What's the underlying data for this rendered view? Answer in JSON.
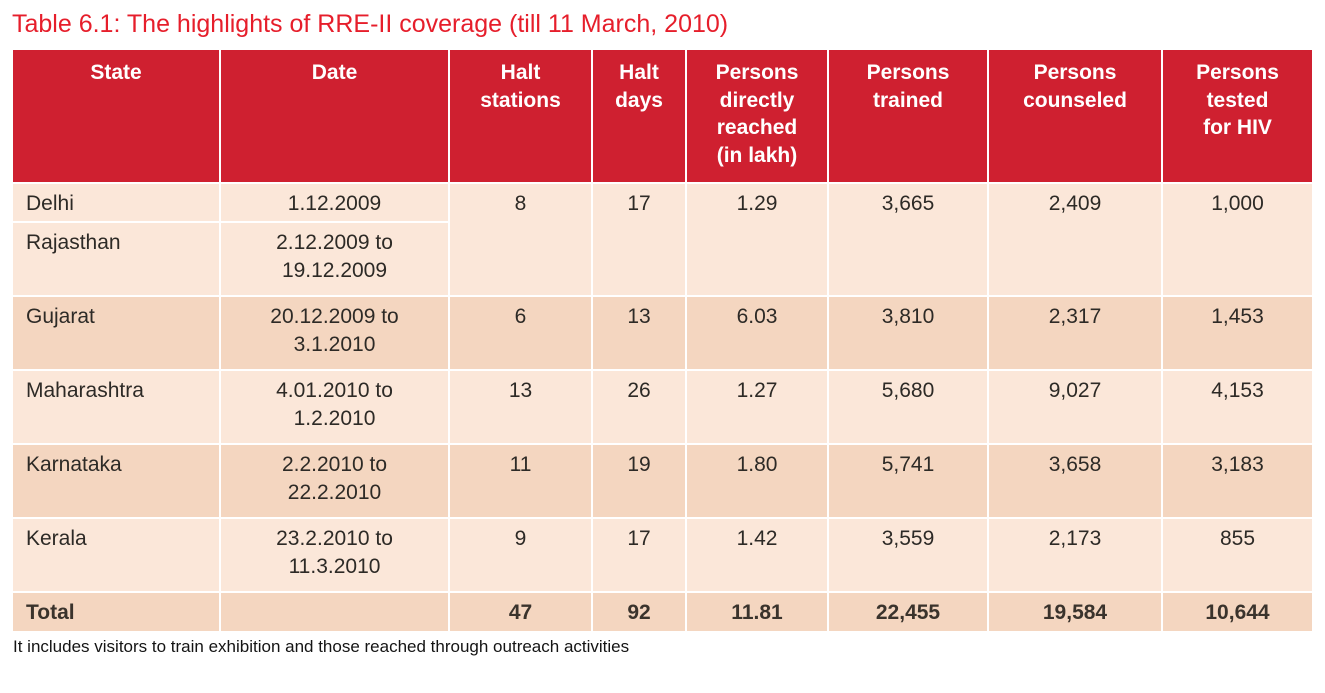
{
  "title": "Table 6.1: The highlights of RRE-II coverage (till 11 March, 2010)",
  "footnote": "It includes visitors to train exhibition and those reached through outreach activities",
  "colors": {
    "header_bg": "#cf2030",
    "header_text": "#ffffff",
    "row_light": "#fbe7d9",
    "row_dark": "#f4d6c0",
    "title_color": "#e61e2b",
    "body_text": "#2d2a26"
  },
  "chart_data": {
    "type": "table",
    "title": "Table 6.1: The highlights of RRE-II coverage (till 11 March, 2010)",
    "columns": [
      "State",
      "Date",
      "Halt stations",
      "Halt days",
      "Persons directly reached (in lakh)",
      "Persons trained",
      "Persons counseled",
      "Persons tested for HIV"
    ],
    "rows": [
      [
        "Delhi",
        "1.12.2009",
        8,
        17,
        1.29,
        3665,
        2409,
        1000
      ],
      [
        "Rajasthan",
        "2.12.2009 to 19.12.2009",
        null,
        null,
        null,
        null,
        null,
        null
      ],
      [
        "Gujarat",
        "20.12.2009 to 3.1.2010",
        6,
        13,
        6.03,
        3810,
        2317,
        1453
      ],
      [
        "Maharashtra",
        "4.01.2010 to 1.2.2010",
        13,
        26,
        1.27,
        5680,
        9027,
        4153
      ],
      [
        "Karnataka",
        "2.2.2010 to 22.2.2010",
        11,
        19,
        1.8,
        5741,
        3658,
        3183
      ],
      [
        "Kerala",
        "23.2.2010 to 11.3.2010",
        9,
        17,
        1.42,
        3559,
        2173,
        855
      ],
      [
        "Total",
        "",
        47,
        92,
        11.81,
        22455,
        19584,
        10644
      ]
    ],
    "note": "Delhi and Rajasthan share one merged data band"
  },
  "table": {
    "headers": {
      "state": "State",
      "date": "Date",
      "halt_stations": "Halt\nstations",
      "halt_days": "Halt\ndays",
      "reached": "Persons\ndirectly\nreached\n(in lakh)",
      "trained": "Persons\ntrained",
      "counseled": "Persons\ncounseled",
      "tested": "Persons\ntested\nfor HIV"
    },
    "rows": [
      {
        "state": "Delhi",
        "date": "1.12.2009",
        "halt_stations": "8",
        "halt_days": "17",
        "reached": "1.29",
        "trained": "3,665",
        "counseled": "2,409",
        "tested": "1,000"
      },
      {
        "state": "Rajasthan",
        "date": "2.12.2009 to\n19.12.2009"
      },
      {
        "state": "Gujarat",
        "date": "20.12.2009 to\n3.1.2010",
        "halt_stations": "6",
        "halt_days": "13",
        "reached": "6.03",
        "trained": "3,810",
        "counseled": "2,317",
        "tested": "1,453"
      },
      {
        "state": "Maharashtra",
        "date": "4.01.2010 to\n1.2.2010",
        "halt_stations": "13",
        "halt_days": "26",
        "reached": "1.27",
        "trained": "5,680",
        "counseled": "9,027",
        "tested": "4,153"
      },
      {
        "state": "Karnataka",
        "date": "2.2.2010 to\n22.2.2010",
        "halt_stations": "11",
        "halt_days": "19",
        "reached": "1.80",
        "trained": "5,741",
        "counseled": "3,658",
        "tested": "3,183"
      },
      {
        "state": "Kerala",
        "date": "23.2.2010 to\n11.3.2010",
        "halt_stations": "9",
        "halt_days": "17",
        "reached": "1.42",
        "trained": "3,559",
        "counseled": "2,173",
        "tested": "855"
      }
    ],
    "total": {
      "label": "Total",
      "date": "",
      "halt_stations": "47",
      "halt_days": "92",
      "reached": "11.81",
      "trained": "22,455",
      "counseled": "19,584",
      "tested": "10,644"
    }
  }
}
